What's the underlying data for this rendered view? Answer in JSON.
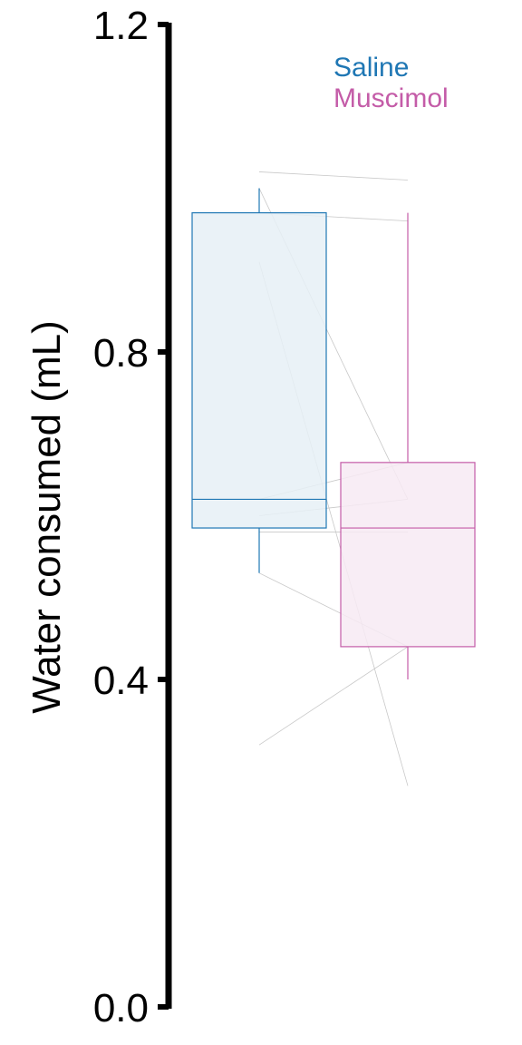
{
  "chart_data": {
    "type": "box",
    "ylabel": "Water consumed (mL)",
    "ylim": [
      0.0,
      1.2
    ],
    "yticks": [
      0.0,
      0.4,
      0.8,
      1.2
    ],
    "ytick_labels": [
      "0.0",
      "0.4",
      "0.8",
      "1.2"
    ],
    "grid": false,
    "legend_position": "top-right",
    "series": [
      {
        "name": "Saline",
        "color": "#1f77b4",
        "fill": "#e6f0f6",
        "whisker_low": 0.53,
        "q1": 0.585,
        "median": 0.62,
        "q3": 0.97,
        "whisker_high": 1.0
      },
      {
        "name": "Muscimol",
        "color": "#c45ca8",
        "fill": "#f7eaf3",
        "whisker_low": 0.4,
        "q1": 0.44,
        "median": 0.585,
        "q3": 0.665,
        "whisker_high": 0.97
      }
    ],
    "paired_lines": [
      {
        "saline": 1.02,
        "muscimol": 1.01
      },
      {
        "saline": 0.97,
        "muscimol": 0.96
      },
      {
        "saline": 0.91,
        "muscimol": 0.27
      },
      {
        "saline": 1.0,
        "muscimol": 0.62
      },
      {
        "saline": 0.6,
        "muscimol": 0.62
      },
      {
        "saline": 0.58,
        "muscimol": 0.58
      },
      {
        "saline": 0.62,
        "muscimol": 0.665
      },
      {
        "saline": 0.53,
        "muscimol": 0.44
      },
      {
        "saline": 0.32,
        "muscimol": 0.44
      }
    ]
  }
}
